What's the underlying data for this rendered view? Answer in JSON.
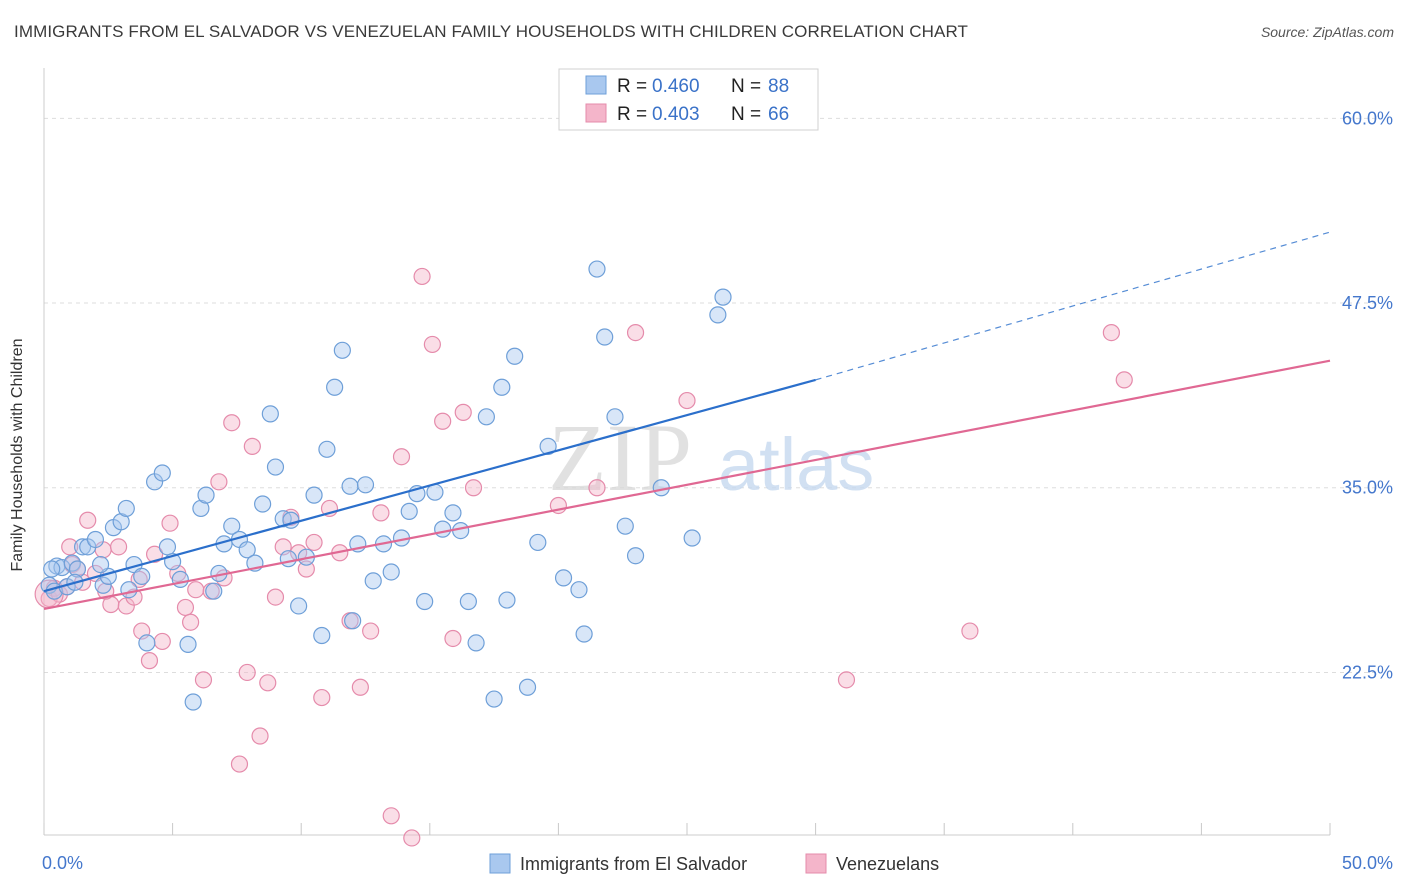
{
  "header": {
    "title": "IMMIGRANTS FROM EL SALVADOR VS VENEZUELAN FAMILY HOUSEHOLDS WITH CHILDREN CORRELATION CHART",
    "source": "Source: ZipAtlas.com"
  },
  "watermark": {
    "zip": "ZIP",
    "atlas": "atlas"
  },
  "chart_data": {
    "type": "scatter",
    "xlabel": "",
    "ylabel": "Family Households with Children",
    "xlim": [
      0,
      50
    ],
    "ylim": [
      11.5,
      63
    ],
    "x_tick_labels": [
      {
        "value": 0,
        "label": "0.0%"
      },
      {
        "value": 50,
        "label": "50.0%"
      }
    ],
    "y_tick_labels": [
      {
        "value": 22.5,
        "label": "22.5%"
      },
      {
        "value": 35.0,
        "label": "35.0%"
      },
      {
        "value": 47.5,
        "label": "47.5%"
      },
      {
        "value": 60.0,
        "label": "60.0%"
      }
    ],
    "legend": {
      "placement": "top-center",
      "entries": [
        {
          "r_label": "R =",
          "r_value": "0.460",
          "n_label": "N =",
          "n_value": "88"
        },
        {
          "r_label": "R =",
          "r_value": "0.403",
          "n_label": "N =",
          "n_value": "66"
        }
      ]
    },
    "bottom_legend": {
      "placement": "bottom-center",
      "entries": [
        "Immigrants from El Salvador",
        "Venezuelans"
      ]
    },
    "colors": {
      "blue_fill": "#a9c8ef",
      "blue_stroke": "#6e9fd8",
      "blue_line": "#2b6fcb",
      "pink_fill": "#f4b5ca",
      "pink_stroke": "#e58bab",
      "pink_line": "#e06893",
      "axis_text": "#4477cc",
      "grid": "#dddddd"
    },
    "series": [
      {
        "key": "el_salvador",
        "trend": {
          "x0": 0,
          "y0": 28.0,
          "x1": 30,
          "y1": 42.3,
          "dash_to_x": 50,
          "dash_to_y": 52.3
        },
        "points": [
          [
            0.2,
            28.4
          ],
          [
            0.4,
            28.0
          ],
          [
            0.5,
            29.7
          ],
          [
            0.7,
            29.6
          ],
          [
            0.9,
            28.3
          ],
          [
            1.1,
            29.9
          ],
          [
            1.3,
            29.5
          ],
          [
            1.5,
            31.0
          ],
          [
            1.7,
            31.0
          ],
          [
            2.0,
            31.5
          ],
          [
            2.3,
            28.4
          ],
          [
            2.5,
            29.0
          ],
          [
            2.7,
            32.3
          ],
          [
            3.0,
            32.7
          ],
          [
            3.2,
            33.6
          ],
          [
            3.5,
            29.8
          ],
          [
            3.8,
            29.0
          ],
          [
            4.0,
            24.5
          ],
          [
            4.3,
            35.4
          ],
          [
            4.6,
            36.0
          ],
          [
            4.8,
            31.0
          ],
          [
            5.0,
            30.0
          ],
          [
            5.3,
            28.8
          ],
          [
            5.6,
            24.4
          ],
          [
            5.8,
            20.5
          ],
          [
            6.1,
            33.6
          ],
          [
            6.3,
            34.5
          ],
          [
            6.6,
            28.0
          ],
          [
            6.8,
            29.2
          ],
          [
            7.0,
            31.2
          ],
          [
            7.3,
            32.4
          ],
          [
            7.6,
            31.5
          ],
          [
            7.9,
            30.8
          ],
          [
            8.2,
            29.9
          ],
          [
            8.5,
            33.9
          ],
          [
            8.8,
            40.0
          ],
          [
            9.0,
            36.4
          ],
          [
            9.3,
            32.9
          ],
          [
            9.6,
            32.8
          ],
          [
            9.9,
            27.0
          ],
          [
            10.2,
            30.3
          ],
          [
            10.5,
            34.5
          ],
          [
            10.8,
            25.0
          ],
          [
            11.0,
            37.6
          ],
          [
            11.3,
            41.8
          ],
          [
            11.6,
            44.3
          ],
          [
            11.9,
            35.1
          ],
          [
            12.2,
            31.2
          ],
          [
            12.5,
            35.2
          ],
          [
            12.8,
            28.7
          ],
          [
            13.2,
            31.2
          ],
          [
            13.5,
            29.3
          ],
          [
            13.9,
            31.6
          ],
          [
            14.2,
            33.4
          ],
          [
            14.5,
            34.6
          ],
          [
            14.8,
            27.3
          ],
          [
            15.2,
            34.7
          ],
          [
            15.5,
            32.2
          ],
          [
            15.9,
            33.3
          ],
          [
            16.2,
            32.1
          ],
          [
            16.5,
            27.3
          ],
          [
            16.8,
            24.5
          ],
          [
            17.2,
            39.8
          ],
          [
            17.5,
            20.7
          ],
          [
            17.8,
            41.8
          ],
          [
            18.0,
            27.4
          ],
          [
            18.3,
            43.9
          ],
          [
            18.8,
            21.5
          ],
          [
            19.2,
            31.3
          ],
          [
            19.6,
            37.8
          ],
          [
            20.2,
            28.9
          ],
          [
            20.8,
            28.1
          ],
          [
            21.0,
            25.1
          ],
          [
            21.5,
            49.8
          ],
          [
            21.8,
            45.2
          ],
          [
            22.2,
            39.8
          ],
          [
            22.6,
            32.4
          ],
          [
            23.0,
            30.4
          ],
          [
            25.2,
            31.6
          ],
          [
            26.2,
            46.7
          ],
          [
            26.4,
            47.9
          ],
          [
            24.0,
            35.0
          ],
          [
            3.3,
            28.1
          ],
          [
            2.2,
            29.8
          ],
          [
            1.2,
            28.6
          ],
          [
            0.3,
            29.5
          ],
          [
            12.0,
            26.0
          ],
          [
            9.5,
            30.2
          ]
        ]
      },
      {
        "key": "venezuelans",
        "trend": {
          "x0": 0,
          "y0": 26.8,
          "x1": 50,
          "y1": 43.6
        },
        "points": [
          [
            0.2,
            27.5
          ],
          [
            0.4,
            28.2
          ],
          [
            0.6,
            27.8
          ],
          [
            0.9,
            28.3
          ],
          [
            1.1,
            29.8
          ],
          [
            1.3,
            29.5
          ],
          [
            1.5,
            28.6
          ],
          [
            1.7,
            32.8
          ],
          [
            2.0,
            29.2
          ],
          [
            2.3,
            30.8
          ],
          [
            2.6,
            27.1
          ],
          [
            2.9,
            31.0
          ],
          [
            3.2,
            27.0
          ],
          [
            3.5,
            27.6
          ],
          [
            3.8,
            25.3
          ],
          [
            4.1,
            23.3
          ],
          [
            4.3,
            30.5
          ],
          [
            4.6,
            24.6
          ],
          [
            4.9,
            32.6
          ],
          [
            5.2,
            29.2
          ],
          [
            5.5,
            26.9
          ],
          [
            5.7,
            25.9
          ],
          [
            5.9,
            28.1
          ],
          [
            6.2,
            22.0
          ],
          [
            6.5,
            28.0
          ],
          [
            6.8,
            35.4
          ],
          [
            7.0,
            28.9
          ],
          [
            7.3,
            39.4
          ],
          [
            7.6,
            16.3
          ],
          [
            7.9,
            22.5
          ],
          [
            8.1,
            37.8
          ],
          [
            8.4,
            18.2
          ],
          [
            8.7,
            21.8
          ],
          [
            9.0,
            27.6
          ],
          [
            9.3,
            31.0
          ],
          [
            9.6,
            33.0
          ],
          [
            9.9,
            30.6
          ],
          [
            10.2,
            29.5
          ],
          [
            10.5,
            31.3
          ],
          [
            10.8,
            20.8
          ],
          [
            11.1,
            33.6
          ],
          [
            11.5,
            30.6
          ],
          [
            11.9,
            26.0
          ],
          [
            12.3,
            21.5
          ],
          [
            12.7,
            25.3
          ],
          [
            13.1,
            33.3
          ],
          [
            13.5,
            12.8
          ],
          [
            13.9,
            37.1
          ],
          [
            14.3,
            11.3
          ],
          [
            14.7,
            49.3
          ],
          [
            15.1,
            44.7
          ],
          [
            15.5,
            39.5
          ],
          [
            15.9,
            24.8
          ],
          [
            16.3,
            40.1
          ],
          [
            16.7,
            35.0
          ],
          [
            20.0,
            33.8
          ],
          [
            21.5,
            35.0
          ],
          [
            23.0,
            45.5
          ],
          [
            25.0,
            40.9
          ],
          [
            31.2,
            22.0
          ],
          [
            36.0,
            25.3
          ],
          [
            41.5,
            45.5
          ],
          [
            42.0,
            42.3
          ],
          [
            2.4,
            28.0
          ],
          [
            3.7,
            28.8
          ],
          [
            1.0,
            31.0
          ]
        ]
      }
    ]
  }
}
